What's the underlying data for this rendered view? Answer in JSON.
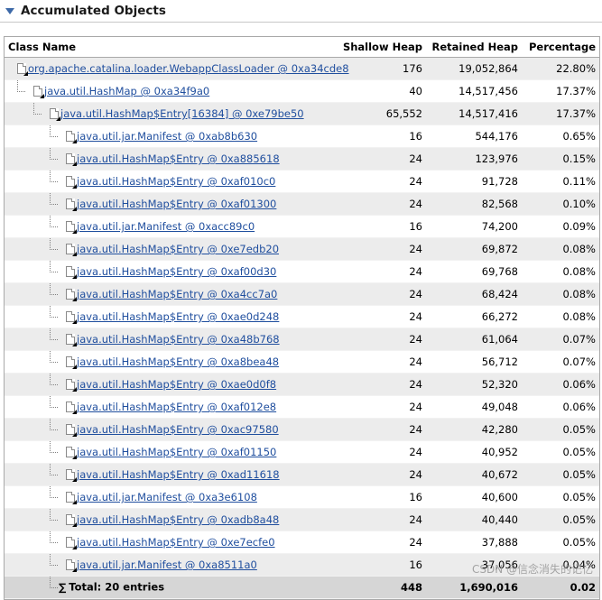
{
  "section": {
    "title": "Accumulated Objects"
  },
  "columns": {
    "class_name": "Class Name",
    "shallow_heap": "Shallow Heap",
    "retained_heap": "Retained Heap",
    "percentage": "Percentage"
  },
  "rows": [
    {
      "depth": 0,
      "name": "org.apache.catalina.loader.WebappClassLoader @ 0xa34cde8",
      "shallow": "176",
      "retained": "19,052,864",
      "pct": "22.80%"
    },
    {
      "depth": 1,
      "name": "java.util.HashMap @ 0xa34f9a0",
      "shallow": "40",
      "retained": "14,517,456",
      "pct": "17.37%"
    },
    {
      "depth": 2,
      "name": "java.util.HashMap$Entry[16384] @ 0xe79be50",
      "shallow": "65,552",
      "retained": "14,517,416",
      "pct": "17.37%"
    },
    {
      "depth": 3,
      "name": "java.util.jar.Manifest @ 0xab8b630",
      "shallow": "16",
      "retained": "544,176",
      "pct": "0.65%"
    },
    {
      "depth": 3,
      "name": "java.util.HashMap$Entry @ 0xa885618",
      "shallow": "24",
      "retained": "123,976",
      "pct": "0.15%"
    },
    {
      "depth": 3,
      "name": "java.util.HashMap$Entry @ 0xaf010c0",
      "shallow": "24",
      "retained": "91,728",
      "pct": "0.11%"
    },
    {
      "depth": 3,
      "name": "java.util.HashMap$Entry @ 0xaf01300",
      "shallow": "24",
      "retained": "82,568",
      "pct": "0.10%"
    },
    {
      "depth": 3,
      "name": "java.util.jar.Manifest @ 0xacc89c0",
      "shallow": "16",
      "retained": "74,200",
      "pct": "0.09%"
    },
    {
      "depth": 3,
      "name": "java.util.HashMap$Entry @ 0xe7edb20",
      "shallow": "24",
      "retained": "69,872",
      "pct": "0.08%"
    },
    {
      "depth": 3,
      "name": "java.util.HashMap$Entry @ 0xaf00d30",
      "shallow": "24",
      "retained": "69,768",
      "pct": "0.08%"
    },
    {
      "depth": 3,
      "name": "java.util.HashMap$Entry @ 0xa4cc7a0",
      "shallow": "24",
      "retained": "68,424",
      "pct": "0.08%"
    },
    {
      "depth": 3,
      "name": "java.util.HashMap$Entry @ 0xae0d248",
      "shallow": "24",
      "retained": "66,272",
      "pct": "0.08%"
    },
    {
      "depth": 3,
      "name": "java.util.HashMap$Entry @ 0xa48b768",
      "shallow": "24",
      "retained": "61,064",
      "pct": "0.07%"
    },
    {
      "depth": 3,
      "name": "java.util.HashMap$Entry @ 0xa8bea48",
      "shallow": "24",
      "retained": "56,712",
      "pct": "0.07%"
    },
    {
      "depth": 3,
      "name": "java.util.HashMap$Entry @ 0xae0d0f8",
      "shallow": "24",
      "retained": "52,320",
      "pct": "0.06%"
    },
    {
      "depth": 3,
      "name": "java.util.HashMap$Entry @ 0xaf012e8",
      "shallow": "24",
      "retained": "49,048",
      "pct": "0.06%"
    },
    {
      "depth": 3,
      "name": "java.util.HashMap$Entry @ 0xac97580",
      "shallow": "24",
      "retained": "42,280",
      "pct": "0.05%"
    },
    {
      "depth": 3,
      "name": "java.util.HashMap$Entry @ 0xaf01150",
      "shallow": "24",
      "retained": "40,952",
      "pct": "0.05%"
    },
    {
      "depth": 3,
      "name": "java.util.HashMap$Entry @ 0xad11618",
      "shallow": "24",
      "retained": "40,672",
      "pct": "0.05%"
    },
    {
      "depth": 3,
      "name": "java.util.jar.Manifest @ 0xa3e6108",
      "shallow": "16",
      "retained": "40,600",
      "pct": "0.05%"
    },
    {
      "depth": 3,
      "name": "java.util.HashMap$Entry @ 0xadb8a48",
      "shallow": "24",
      "retained": "40,440",
      "pct": "0.05%"
    },
    {
      "depth": 3,
      "name": "java.util.HashMap$Entry @ 0xe7ecfe0",
      "shallow": "24",
      "retained": "37,888",
      "pct": "0.05%"
    },
    {
      "depth": 3,
      "name": "java.util.jar.Manifest @ 0xa8511a0",
      "shallow": "16",
      "retained": "37,056",
      "pct": "0.04%"
    }
  ],
  "total": {
    "symbol": "∑",
    "label": "Total: 20 entries",
    "shallow": "448",
    "retained": "1,690,016",
    "pct": "0.02"
  },
  "watermark": "CSDN @信念消失的记忆"
}
